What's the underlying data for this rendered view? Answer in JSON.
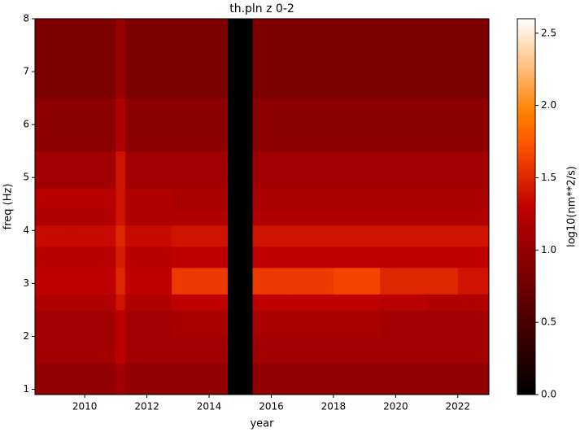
{
  "chart_data": {
    "type": "heatmap",
    "title": "th.pln z 0-2",
    "x_label": "year",
    "y_label": "freq (Hz)",
    "colormap": "gist_heat",
    "x_edges": [
      2008.4,
      2009.5,
      2010.5,
      2011.0,
      2011.3,
      2012.8,
      2013.5,
      2014.6,
      2015.4,
      2016.5,
      2018,
      2019.5,
      2021,
      2022,
      2023.0
    ],
    "y_edges": [
      0.9,
      1.5,
      2.0,
      2.5,
      2.8,
      3.3,
      3.7,
      4.1,
      4.4,
      4.8,
      5.5,
      6.5,
      8
    ],
    "z": [
      [
        1.0,
        1.0,
        1.0,
        1.1,
        1.0,
        1.0,
        1.0,
        0,
        1.0,
        1.0,
        1.0,
        1.0,
        1.0,
        1.0
      ],
      [
        1.1,
        1.1,
        1.1,
        1.3,
        1.1,
        1.1,
        1.1,
        0,
        1.1,
        1.1,
        1.1,
        1.1,
        1.1,
        1.1
      ],
      [
        1.1,
        1.1,
        1.1,
        1.3,
        1.1,
        1.15,
        1.15,
        0,
        1.15,
        1.15,
        1.15,
        1.1,
        1.1,
        1.1
      ],
      [
        1.2,
        1.2,
        1.2,
        1.4,
        1.2,
        1.3,
        1.3,
        0,
        1.3,
        1.3,
        1.3,
        1.25,
        1.2,
        1.2
      ],
      [
        1.3,
        1.3,
        1.3,
        1.5,
        1.3,
        1.6,
        1.6,
        0,
        1.6,
        1.6,
        1.65,
        1.5,
        1.5,
        1.4
      ],
      [
        1.25,
        1.25,
        1.25,
        1.45,
        1.25,
        1.3,
        1.3,
        0,
        1.3,
        1.3,
        1.3,
        1.3,
        1.3,
        1.3
      ],
      [
        1.35,
        1.35,
        1.35,
        1.5,
        1.35,
        1.4,
        1.4,
        0,
        1.4,
        1.4,
        1.4,
        1.4,
        1.4,
        1.4
      ],
      [
        1.2,
        1.2,
        1.2,
        1.4,
        1.2,
        1.2,
        1.2,
        0,
        1.2,
        1.2,
        1.2,
        1.2,
        1.2,
        1.2
      ],
      [
        1.25,
        1.25,
        1.25,
        1.4,
        1.2,
        1.15,
        1.15,
        0,
        1.15,
        1.15,
        1.15,
        1.15,
        1.15,
        1.15
      ],
      [
        1.1,
        1.1,
        1.1,
        1.4,
        1.1,
        1.1,
        1.1,
        0,
        1.1,
        1.1,
        1.1,
        1.1,
        1.1,
        1.1
      ],
      [
        0.95,
        0.95,
        0.95,
        1.2,
        0.95,
        0.95,
        0.95,
        0,
        0.95,
        0.95,
        0.95,
        0.95,
        0.95,
        0.95
      ],
      [
        0.85,
        0.85,
        0.85,
        1.05,
        0.85,
        0.85,
        0.85,
        0,
        0.85,
        0.85,
        0.85,
        0.85,
        0.85,
        0.85
      ]
    ],
    "xlim": [
      2008.4,
      2023.0
    ],
    "xticks": [
      2010,
      2012,
      2014,
      2016,
      2018,
      2020,
      2022
    ],
    "ylim": [
      0.9,
      8
    ],
    "yticks": [
      1,
      2,
      3,
      4,
      5,
      6,
      7,
      8
    ],
    "colorbar": {
      "label": "log10(nm**2/s)",
      "lim": [
        0,
        2.6
      ],
      "ticks": [
        {
          "value": 0,
          "label": "0.0"
        },
        0.5,
        {
          "value": 1,
          "label": "1.0"
        },
        1.5,
        {
          "value": 2,
          "label": "2.0"
        },
        2.5
      ]
    }
  }
}
